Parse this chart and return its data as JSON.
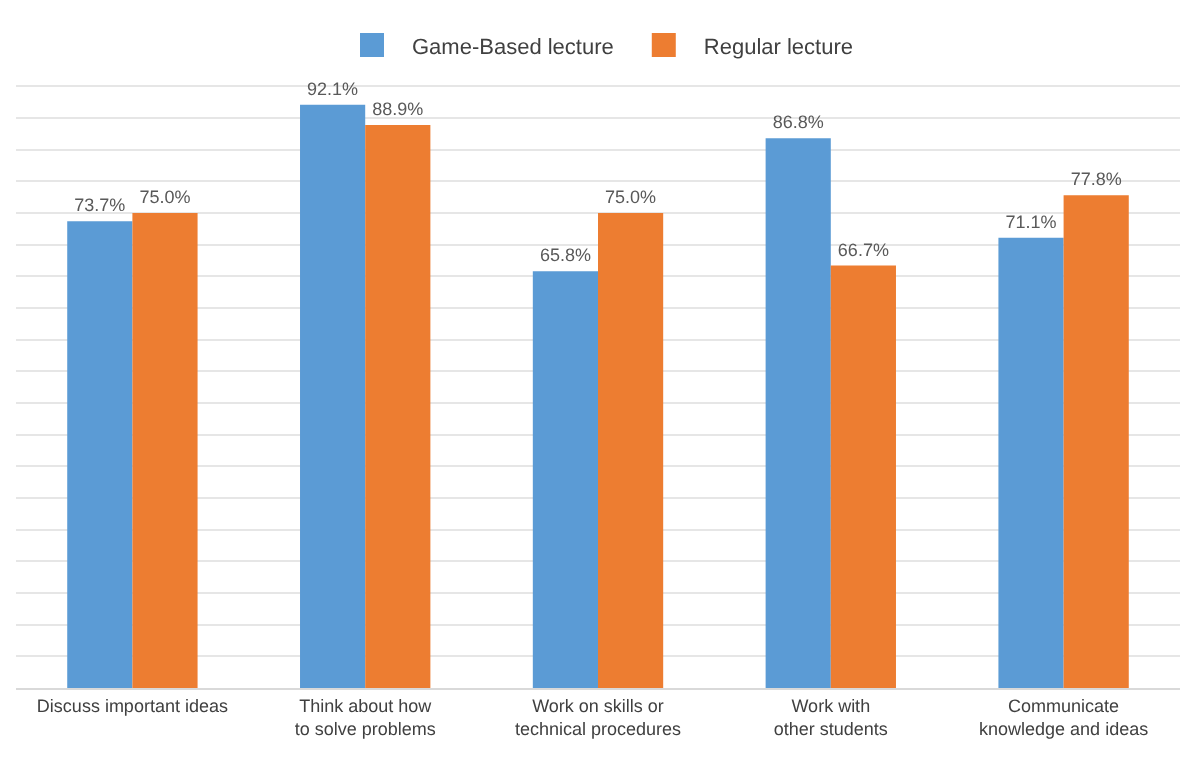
{
  "chart_data": {
    "type": "bar",
    "categories": [
      "Discuss important ideas",
      "Think about how to solve problems",
      "Work on skills or technical procedures",
      "Work with other students",
      "Communicate knowledge and ideas"
    ],
    "series": [
      {
        "name": "Game-Based lecture",
        "color": "#5b9bd5",
        "values": [
          73.7,
          92.1,
          65.8,
          86.8,
          71.1
        ],
        "value_labels": [
          "73.7%",
          "92.1%",
          "65.8%",
          "86.8%",
          "71.1%"
        ]
      },
      {
        "name": "Regular lecture",
        "color": "#ed7d31",
        "values": [
          75.0,
          88.9,
          75.0,
          66.7,
          77.8
        ],
        "value_labels": [
          "75.0%",
          "88.9%",
          "75.0%",
          "66.7%",
          "77.8%"
        ]
      }
    ],
    "grid": "y",
    "legend": "top",
    "tick_labels": "x"
  }
}
